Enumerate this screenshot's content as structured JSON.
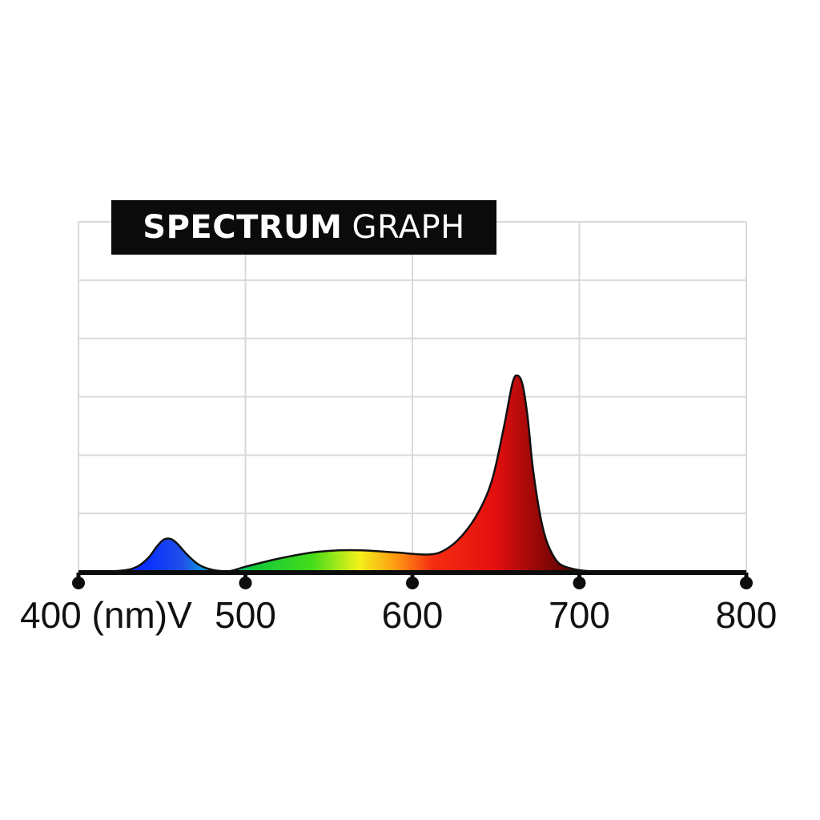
{
  "chart_data": {
    "type": "area",
    "title_bold": "SPECTRUM",
    "title_light": "GRAPH",
    "x_ticks": [
      {
        "value": 400,
        "label": "400 (nm)V"
      },
      {
        "value": 500,
        "label": "500"
      },
      {
        "value": 600,
        "label": "600"
      },
      {
        "value": 700,
        "label": "700"
      },
      {
        "value": 800,
        "label": "800"
      }
    ],
    "xlim": [
      400,
      800
    ],
    "ylim": [
      0,
      100
    ],
    "grid": true,
    "grid_lines_y": 6,
    "series": [
      {
        "x": [
          400,
          425,
          435,
          442,
          447,
          451,
          455,
          459,
          465,
          472,
          480,
          490,
          500,
          520,
          540,
          555,
          570,
          590,
          610,
          620,
          630,
          640,
          648,
          655,
          660,
          663,
          666,
          669,
          672,
          676,
          680,
          685,
          690,
          700,
          710,
          725,
          800
        ],
        "y": [
          0,
          0.5,
          2.5,
          7,
          12.5,
          15.8,
          16.2,
          14,
          8.5,
          3.5,
          1,
          0.3,
          2.5,
          6.5,
          9.5,
          10.5,
          10.5,
          9.5,
          8.5,
          11,
          18,
          30,
          46,
          72,
          93,
          96.5,
          92,
          76,
          52,
          30,
          16,
          7,
          3,
          0.8,
          0.2,
          0,
          0
        ]
      }
    ],
    "gradient_colors": [
      {
        "nm": 440,
        "color": "#0a2eff"
      },
      {
        "nm": 462,
        "color": "#1f4fe8"
      },
      {
        "nm": 478,
        "color": "#0aa7e0"
      },
      {
        "nm": 505,
        "color": "#12c83a"
      },
      {
        "nm": 540,
        "color": "#44dc1a"
      },
      {
        "nm": 568,
        "color": "#f2f21a"
      },
      {
        "nm": 590,
        "color": "#ff9a12"
      },
      {
        "nm": 612,
        "color": "#f52d10"
      },
      {
        "nm": 650,
        "color": "#e30f0f"
      },
      {
        "nm": 700,
        "color": "#4a0000"
      }
    ],
    "colors": {
      "grid": "#d9d9d9",
      "axis": "#0d0d0d",
      "outline": "#111111",
      "title_bg": "#0b0b0b",
      "title_text": "#ffffff"
    }
  }
}
